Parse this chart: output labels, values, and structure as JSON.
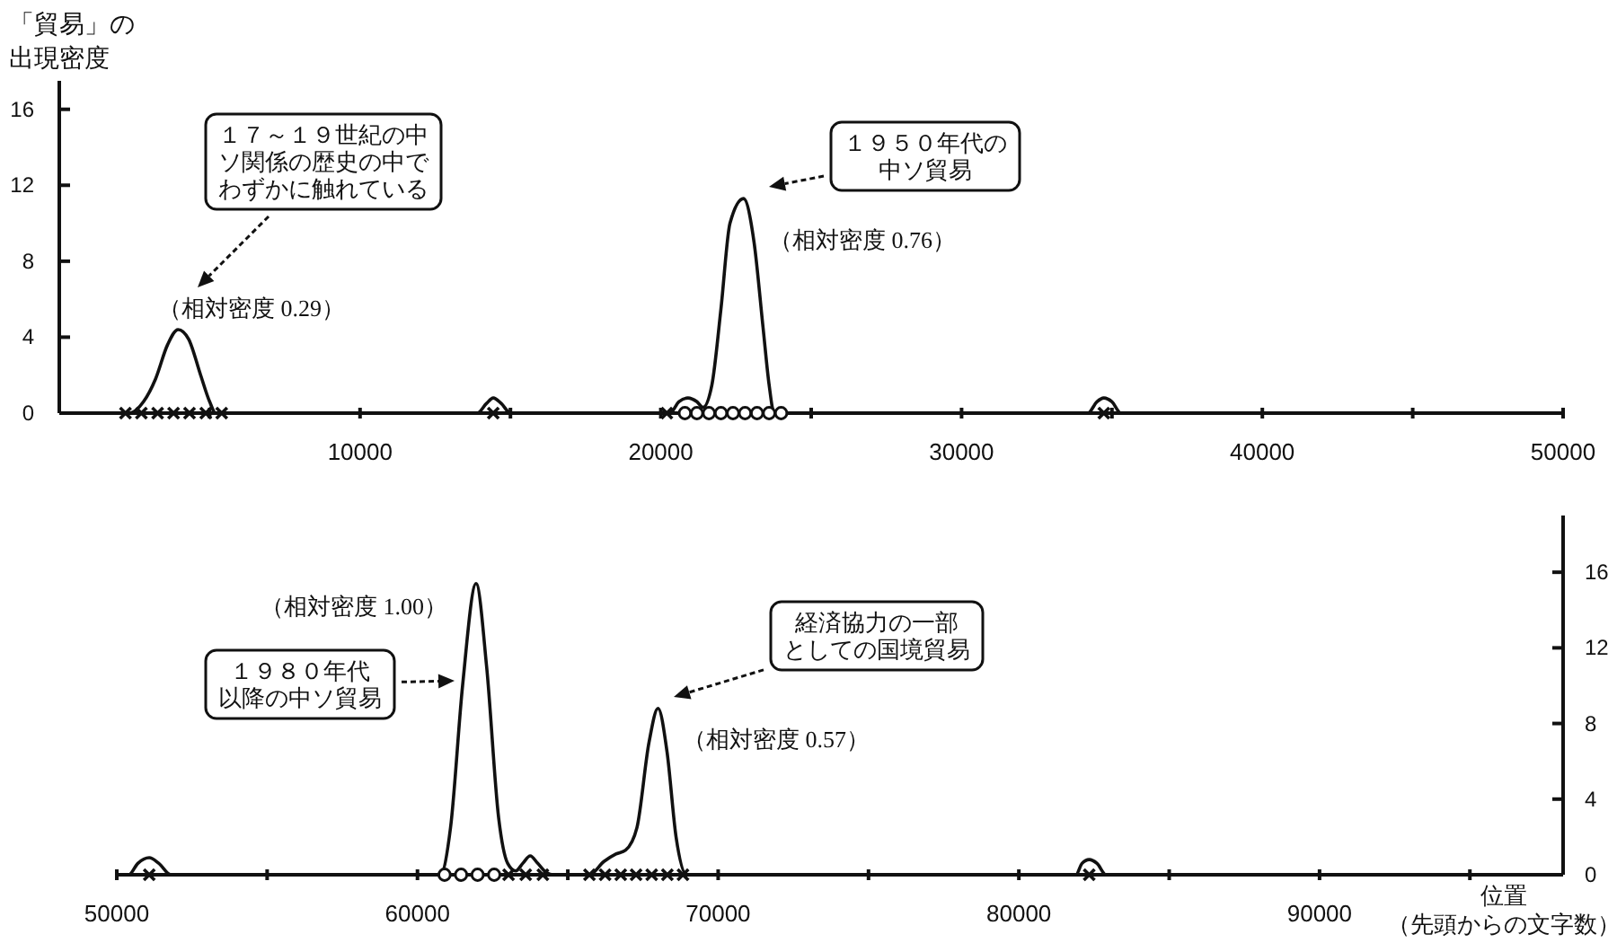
{
  "chart_data": [
    {
      "type": "line",
      "ylabel": "「貿易」の出現密度",
      "xlim": [
        0,
        50000
      ],
      "xticks": [
        {
          "value": 5000,
          "label": null
        },
        10000,
        {
          "value": 15000,
          "label": null
        },
        20000,
        {
          "value": 25000,
          "label": null
        },
        30000,
        {
          "value": 35000,
          "label": null
        },
        40000,
        {
          "value": 45000,
          "label": null
        },
        50000
      ],
      "ylim": [
        0,
        17.5
      ],
      "yticks": [
        0,
        4,
        8,
        12,
        16
      ],
      "annotations": [
        "１７～１９世紀の中ソ関係の歴史の中でわずかに触れている",
        "（相対密度 0.29）",
        "１９５０年代の中ソ貿易",
        "（相対密度 0.76）"
      ],
      "series": [
        {
          "color": "#111111",
          "x": [
            0,
            2000,
            2340,
            2800,
            3200,
            3600,
            3950,
            4300,
            4700,
            5000,
            5200,
            5600,
            13600,
            13900,
            14200,
            14430,
            14700,
            15000,
            15300,
            20000,
            20300,
            20600,
            20900,
            21200,
            21400,
            21700,
            22000,
            22300,
            22750,
            23100,
            23400,
            23600,
            23770,
            24000,
            33900,
            34200,
            34500,
            34730,
            35000,
            35300,
            35600,
            50000
          ],
          "values": [
            0,
            0,
            0,
            0.6,
            1.8,
            3.6,
            4.4,
            3.9,
            2.0,
            0.6,
            0,
            0,
            0,
            0,
            0.5,
            0.8,
            0.5,
            0,
            0,
            0,
            0,
            0.6,
            0.8,
            0.6,
            0.3,
            1.5,
            5.5,
            10,
            11.3,
            9,
            4.5,
            1.5,
            0,
            0,
            0,
            0,
            0.6,
            0.8,
            0.6,
            0,
            0,
            0
          ]
        },
        {
          "type": "scatter",
          "marker": "cross",
          "color": "#111111",
          "x": [
            2200,
            2730,
            3270,
            3800,
            4330,
            4870,
            5400,
            14430,
            20200,
            34730
          ],
          "values": [
            0,
            0,
            0,
            0,
            0,
            0,
            0,
            0,
            0,
            0
          ]
        },
        {
          "type": "scatter",
          "marker": "circle",
          "color": "#111111",
          "x": [
            20800,
            21200,
            21600,
            22000,
            22400,
            22800,
            23200,
            23600,
            24000
          ],
          "values": [
            0,
            0,
            0,
            0,
            0,
            0,
            0,
            0,
            0
          ]
        }
      ]
    },
    {
      "type": "line",
      "xlabel": "位置（先頭からの文字数）",
      "xlim": [
        50000,
        98100
      ],
      "xticks": [
        50000,
        {
          "value": 55000,
          "label": null
        },
        60000,
        {
          "value": 65000,
          "label": null
        },
        70000,
        {
          "value": 75000,
          "label": null
        },
        80000,
        {
          "value": 85000,
          "label": null
        },
        90000,
        {
          "value": 95000,
          "label": null
        }
      ],
      "y2lim": [
        0,
        19
      ],
      "y2ticks": [
        0,
        4,
        8,
        12,
        16
      ],
      "annotations": [
        "（相対密度 1.00）",
        "１９８０年代以降の中ソ貿易",
        "経済協力の一部としての国境貿易",
        "（相対密度 0.57）"
      ],
      "series": [
        {
          "axis": "y2",
          "color": "#111111",
          "x": [
            50000,
            50400,
            50700,
            51080,
            51400,
            51800,
            60200,
            60760,
            61100,
            61500,
            61950,
            62300,
            62700,
            63000,
            63270,
            63500,
            63750,
            64000,
            64300,
            64520,
            65400,
            65720,
            66200,
            66600,
            66920,
            67300,
            67700,
            68000,
            68300,
            68600,
            68950,
            81600,
            81900,
            82100,
            82340,
            82600,
            82900,
            98100
          ],
          "values": [
            0,
            0,
            0.6,
            0.9,
            0.6,
            0,
            0,
            0,
            2.5,
            10,
            15.4,
            11,
            3,
            0.6,
            0.2,
            0.6,
            1.0,
            0.6,
            0.1,
            0,
            0,
            0,
            0.7,
            1.1,
            1.3,
            2.5,
            7,
            8.8,
            6.5,
            2,
            0,
            0,
            0,
            0.6,
            0.8,
            0.6,
            0,
            0
          ]
        },
        {
          "type": "scatter",
          "axis": "y2",
          "marker": "circle",
          "color": "#111111",
          "x": [
            60900,
            61450,
            62000,
            62550
          ],
          "values": [
            0,
            0,
            0,
            0
          ]
        },
        {
          "type": "scatter",
          "axis": "y2",
          "marker": "cross",
          "color": "#111111",
          "x": [
            51080,
            63030,
            63600,
            64170,
            65720,
            66240,
            66760,
            67270,
            67790,
            68310,
            68830,
            82340
          ],
          "values": [
            0,
            0,
            0,
            0,
            0,
            0,
            0,
            0,
            0,
            0,
            0,
            0
          ]
        }
      ]
    }
  ]
}
